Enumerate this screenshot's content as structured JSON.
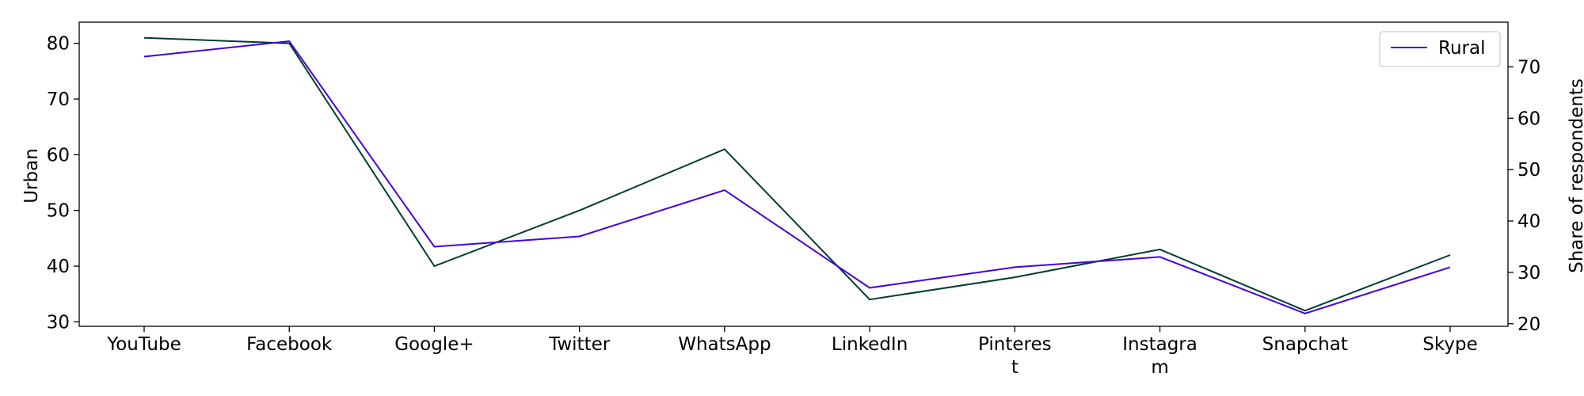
{
  "chart_data": {
    "type": "line",
    "categories": [
      [
        "YouTube"
      ],
      [
        "Facebook"
      ],
      [
        "Google+"
      ],
      [
        "Twitter"
      ],
      [
        "WhatsApp"
      ],
      [
        "LinkedIn"
      ],
      [
        "Pinteres",
        "t"
      ],
      [
        "Instagra",
        "m"
      ],
      [
        "Snapchat"
      ],
      [
        "Skype"
      ]
    ],
    "left_axis": {
      "label": "Urban",
      "ylim": [
        29.2,
        83.8
      ],
      "ticks": [
        30,
        40,
        50,
        60,
        70,
        80
      ]
    },
    "right_axis": {
      "label": "Share of respondents",
      "ylim": [
        19.5,
        78.7
      ],
      "ticks": [
        20,
        30,
        40,
        50,
        60,
        70
      ]
    },
    "series": [
      {
        "name": "",
        "axis": "left",
        "color": "#003d33",
        "values": [
          81,
          80,
          40,
          50,
          61,
          34,
          38,
          43,
          32,
          42
        ]
      },
      {
        "name": "Rural",
        "axis": "right",
        "color": "#4400dd",
        "values": [
          72,
          75,
          35,
          37,
          46,
          27,
          31,
          33,
          22,
          31
        ]
      }
    ],
    "legend": {
      "position": "top-right",
      "entries": [
        "Rural"
      ]
    },
    "grid": false
  }
}
